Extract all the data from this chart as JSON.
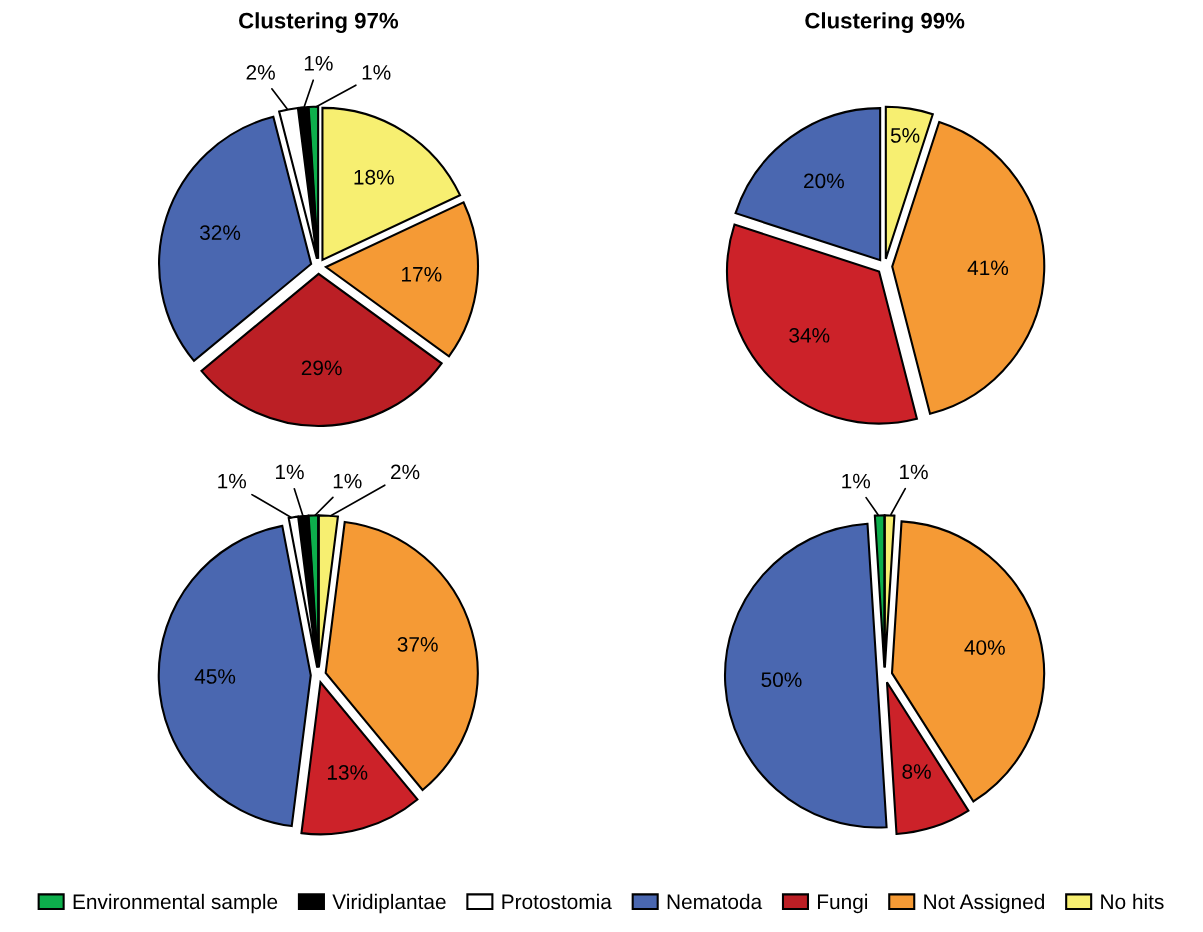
{
  "chart_data": [
    {
      "type": "pie",
      "title": "Clustering 97%",
      "legend": "bottom",
      "categories": [
        "Environmental sample",
        "Viridiplantae",
        "Protostomia",
        "Nematoda",
        "Fungi",
        "Not Assigned",
        "No hits"
      ],
      "values": [
        1,
        1,
        2,
        32,
        29,
        17,
        18
      ],
      "colors": [
        "#0daf4c",
        "#000000",
        "#ffffff",
        "#4a67b0",
        "#bb1f25",
        "#f59a35",
        "#f7ef71"
      ],
      "value_labels": [
        "1%",
        "1%",
        "2%",
        "32%",
        "29%",
        "17%",
        "18%"
      ]
    },
    {
      "type": "pie",
      "title": "Clustering 99%",
      "categories": [
        null,
        null,
        null,
        null
      ],
      "values": [
        20,
        34,
        41,
        5
      ],
      "colors": [
        "#4a67b0",
        "#cc2229",
        "#f59a35",
        "#f7ef71"
      ],
      "value_labels": [
        "20%",
        "34%",
        "41%",
        "5%"
      ]
    },
    {
      "type": "pie",
      "categories": [
        null,
        null,
        null,
        null,
        null,
        null,
        null
      ],
      "values": [
        1,
        1,
        1,
        45,
        13,
        37,
        2
      ],
      "colors": [
        "#0daf4c",
        "#000000",
        "#ffffff",
        "#4a67b0",
        "#cc2229",
        "#f59a35",
        "#f7ef71"
      ],
      "value_labels": [
        "1%",
        "1%",
        "1%",
        "45%",
        "13%",
        "37%",
        "2%"
      ]
    },
    {
      "type": "pie",
      "categories": [
        null,
        null,
        null,
        null,
        null
      ],
      "values": [
        1,
        50,
        8,
        40,
        1
      ],
      "colors": [
        "#0daf4c",
        "#4a67b0",
        "#cc2229",
        "#f59a35",
        "#f7ef71"
      ],
      "value_labels": [
        "1%",
        "50%",
        "8%",
        "40%",
        "1%"
      ]
    }
  ]
}
